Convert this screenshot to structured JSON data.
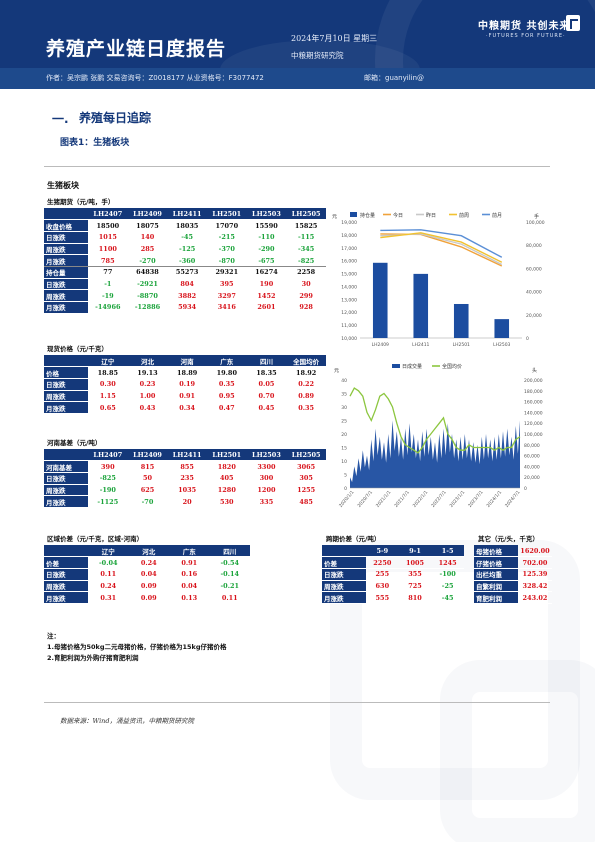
{
  "header": {
    "title": "养殖产业链日度报告",
    "date": "2024年7月10日 星期三",
    "org": "中粮期货研究院",
    "brand": "中粮期货 共创未来",
    "brand_sub": "·FUTURES FOR FUTURE·"
  },
  "authors": {
    "author": "作者：吴宗鹏 张鹏 交易咨询号：Z0018177 从业资格号：F3077472",
    "email": "邮箱：guanyilin@"
  },
  "section": {
    "num": "一.",
    "title": "养殖每日追踪"
  },
  "figure_title": "图表1：生猪板块",
  "panel_title": "生猪板块",
  "futures": {
    "caption": "生猪期货（元/吨，手）",
    "columns": [
      "",
      "LH2407",
      "LH2409",
      "LH2411",
      "LH2501",
      "LH2503",
      "LH2505"
    ],
    "rows": [
      {
        "label": "收盘价格",
        "values": [
          "18500",
          "18075",
          "18035",
          "17070",
          "15590",
          "15825"
        ],
        "kind": "val"
      },
      {
        "label": "日涨跌",
        "values": [
          "1015",
          "140",
          "-45",
          "-215",
          "-110",
          "-115"
        ],
        "kind": "sign"
      },
      {
        "label": "周涨跌",
        "values": [
          "1100",
          "285",
          "-125",
          "-370",
          "-290",
          "-345"
        ],
        "kind": "sign"
      },
      {
        "label": "月涨跌",
        "values": [
          "785",
          "-270",
          "-360",
          "-870",
          "-675",
          "-825"
        ],
        "kind": "sign"
      },
      {
        "label": "持仓量",
        "values": [
          "77",
          "64838",
          "55273",
          "29321",
          "16274",
          "2258"
        ],
        "kind": "val"
      },
      {
        "label": "日涨跌",
        "values": [
          "-1",
          "-2921",
          "804",
          "395",
          "190",
          "30"
        ],
        "kind": "sign"
      },
      {
        "label": "周涨跌",
        "values": [
          "-19",
          "-8870",
          "3882",
          "3297",
          "1452",
          "299"
        ],
        "kind": "sign"
      },
      {
        "label": "月涨跌",
        "values": [
          "-14966",
          "-12886",
          "5934",
          "3416",
          "2601",
          "928"
        ],
        "kind": "sign"
      }
    ]
  },
  "spot": {
    "caption": "现货价格（元/千克）",
    "columns": [
      "",
      "辽宁",
      "河北",
      "河南",
      "广东",
      "四川",
      "全国均价"
    ],
    "rows": [
      {
        "label": "价格",
        "values": [
          "18.85",
          "19.13",
          "18.89",
          "19.80",
          "18.35",
          "18.92"
        ],
        "kind": "val"
      },
      {
        "label": "日涨跌",
        "values": [
          "0.30",
          "0.23",
          "0.19",
          "0.35",
          "0.05",
          "0.22"
        ],
        "kind": "sign"
      },
      {
        "label": "周涨跌",
        "values": [
          "1.15",
          "1.00",
          "0.91",
          "0.95",
          "0.70",
          "0.89"
        ],
        "kind": "sign"
      },
      {
        "label": "月涨跌",
        "values": [
          "0.65",
          "0.43",
          "0.34",
          "0.47",
          "0.45",
          "0.35"
        ],
        "kind": "sign"
      }
    ]
  },
  "basis": {
    "caption": "河南基差（元/吨）",
    "columns": [
      "",
      "LH2407",
      "LH2409",
      "LH2411",
      "LH2501",
      "LH2503",
      "LH2505"
    ],
    "rows": [
      {
        "label": "河南基差",
        "values": [
          "390",
          "815",
          "855",
          "1820",
          "3300",
          "3065"
        ],
        "kind": "sign"
      },
      {
        "label": "日涨跌",
        "values": [
          "-825",
          "50",
          "235",
          "405",
          "300",
          "305"
        ],
        "kind": "sign"
      },
      {
        "label": "周涨跌",
        "values": [
          "-190",
          "625",
          "1035",
          "1280",
          "1200",
          "1255"
        ],
        "kind": "sign"
      },
      {
        "label": "月涨跌",
        "values": [
          "-1125",
          "-70",
          "20",
          "530",
          "335",
          "485"
        ],
        "kind": "sign"
      }
    ]
  },
  "regional": {
    "caption": "区域价差（元/千克，区域-河南）",
    "columns": [
      "",
      "辽宁",
      "河北",
      "广东",
      "四川"
    ],
    "rows": [
      {
        "label": "价差",
        "values": [
          "-0.04",
          "0.24",
          "0.91",
          "-0.54"
        ],
        "kind": "sign"
      },
      {
        "label": "日涨跌",
        "values": [
          "0.11",
          "0.04",
          "0.16",
          "-0.14"
        ],
        "kind": "sign"
      },
      {
        "label": "周涨跌",
        "values": [
          "0.24",
          "0.09",
          "0.04",
          "-0.21"
        ],
        "kind": "sign"
      },
      {
        "label": "月涨跌",
        "values": [
          "0.31",
          "0.09",
          "0.13",
          "0.11"
        ],
        "kind": "sign"
      }
    ]
  },
  "spread": {
    "caption": "跨期价差（元/吨）",
    "columns": [
      "",
      "5-9",
      "9-1",
      "1-5"
    ],
    "rows": [
      {
        "label": "价差",
        "values": [
          "2250",
          "1005",
          "1245"
        ],
        "kind": "sign"
      },
      {
        "label": "日涨跌",
        "values": [
          "255",
          "355",
          "-100"
        ],
        "kind": "sign"
      },
      {
        "label": "周涨跌",
        "values": [
          "630",
          "725",
          "-25"
        ],
        "kind": "sign"
      },
      {
        "label": "月涨跌",
        "values": [
          "555",
          "810",
          "-45"
        ],
        "kind": "sign"
      }
    ]
  },
  "other": {
    "caption": "其它（元/头，千克）",
    "rows": [
      {
        "label": "母猪价格",
        "value": "1620.00"
      },
      {
        "label": "仔猪价格",
        "value": "702.00"
      },
      {
        "label": "出栏均重",
        "value": "125.39"
      },
      {
        "label": "自繁利润",
        "value": "328.42"
      },
      {
        "label": "育肥利润",
        "value": "243.02"
      }
    ]
  },
  "notes": {
    "head": "注：",
    "items": [
      "1.母猪价格为50kg二元母猪价格，仔猪价格为15kg仔猪价格",
      "2.育肥利润为外购仔猪育肥利润"
    ]
  },
  "source": "数据来源：Wind，涌益资讯，中粮期货研究院",
  "chart_data": [
    {
      "type": "bar",
      "y_unit_left": "元",
      "y_unit_right": "手",
      "legend": [
        "持仓量",
        "今日",
        "昨日",
        "前周",
        "前月"
      ],
      "categories": [
        "LH2409",
        "LH2411",
        "LH2501",
        "LH2503"
      ],
      "series": [
        {
          "name": "持仓量",
          "kind": "bar",
          "axis": "right",
          "values": [
            64838,
            55273,
            29321,
            16274
          ]
        },
        {
          "name": "今日",
          "kind": "line",
          "axis": "left",
          "values": [
            18075,
            18035,
            17070,
            15590
          ]
        },
        {
          "name": "昨日",
          "kind": "line",
          "axis": "left",
          "values": [
            17935,
            18080,
            17285,
            15700
          ]
        },
        {
          "name": "前周",
          "kind": "line",
          "axis": "left",
          "values": [
            17790,
            18160,
            17440,
            15880
          ]
        },
        {
          "name": "前月",
          "kind": "line",
          "axis": "left",
          "values": [
            18345,
            18395,
            17940,
            16265
          ]
        }
      ],
      "ylim_left": [
        10000,
        19000
      ],
      "yticks_left": [
        "19,000",
        "18,000",
        "17,000",
        "16,000",
        "15,000",
        "14,000",
        "13,000",
        "12,000",
        "11,000",
        "10,000"
      ],
      "ylim_right": [
        0,
        100000
      ],
      "yticks_right": [
        "100,000",
        "80,000",
        "60,000",
        "40,000",
        "20,000",
        "0"
      ],
      "colors": {
        "持仓量": "#1c4da0",
        "今日": "#f0a23a",
        "昨日": "#c9c9c9",
        "前周": "#f2c230",
        "前月": "#5b8fd6"
      }
    },
    {
      "type": "area",
      "y_unit_left": "元",
      "y_unit_right": "头",
      "legend": [
        "日成交量",
        "全国均价"
      ],
      "x_ticks": [
        "2020/1/1",
        "2020/7/1",
        "2021/1/1",
        "2021/7/1",
        "2022/1/1",
        "2022/7/1",
        "2023/1/1",
        "2023/7/1",
        "2024/1/1",
        "2024/7/1"
      ],
      "ylim_left": [
        0,
        40
      ],
      "yticks_left": [
        "40",
        "35",
        "30",
        "25",
        "20",
        "15",
        "10",
        "5",
        "0"
      ],
      "ylim_right": [
        0,
        200000
      ],
      "yticks_right": [
        "200,000",
        "180,000",
        "160,000",
        "140,000",
        "120,000",
        "100,000",
        "80,000",
        "60,000",
        "40,000",
        "20,000",
        "0"
      ],
      "series": [
        {
          "name": "全国均价",
          "kind": "line",
          "axis": "left",
          "values": [
            34,
            37,
            36,
            34,
            28,
            25,
            29,
            34,
            35,
            33,
            30,
            24,
            19,
            16,
            15,
            14,
            13,
            15,
            18,
            20,
            22,
            24,
            26,
            20,
            18,
            15,
            14,
            14,
            16,
            15,
            15,
            15,
            15,
            15,
            14,
            15,
            14,
            15,
            15,
            18,
            19
          ]
        },
        {
          "name": "日成交量",
          "kind": "area",
          "axis": "right",
          "values": [
            20000,
            40000,
            55000,
            70000,
            60000,
            90000,
            110000,
            95000,
            85000,
            100000,
            125000,
            105000,
            95000,
            110000,
            120000,
            100000,
            90000,
            105000,
            110000,
            95000,
            85000,
            100000,
            110000,
            120000,
            100000,
            90000,
            95000,
            100000,
            90000,
            85000,
            80000,
            95000,
            100000,
            90000,
            95000,
            100000,
            105000,
            110000,
            95000,
            115000,
            125000
          ]
        }
      ],
      "colors": {
        "日成交量": "#1c4da0",
        "全国均价": "#8cc63f"
      }
    }
  ]
}
